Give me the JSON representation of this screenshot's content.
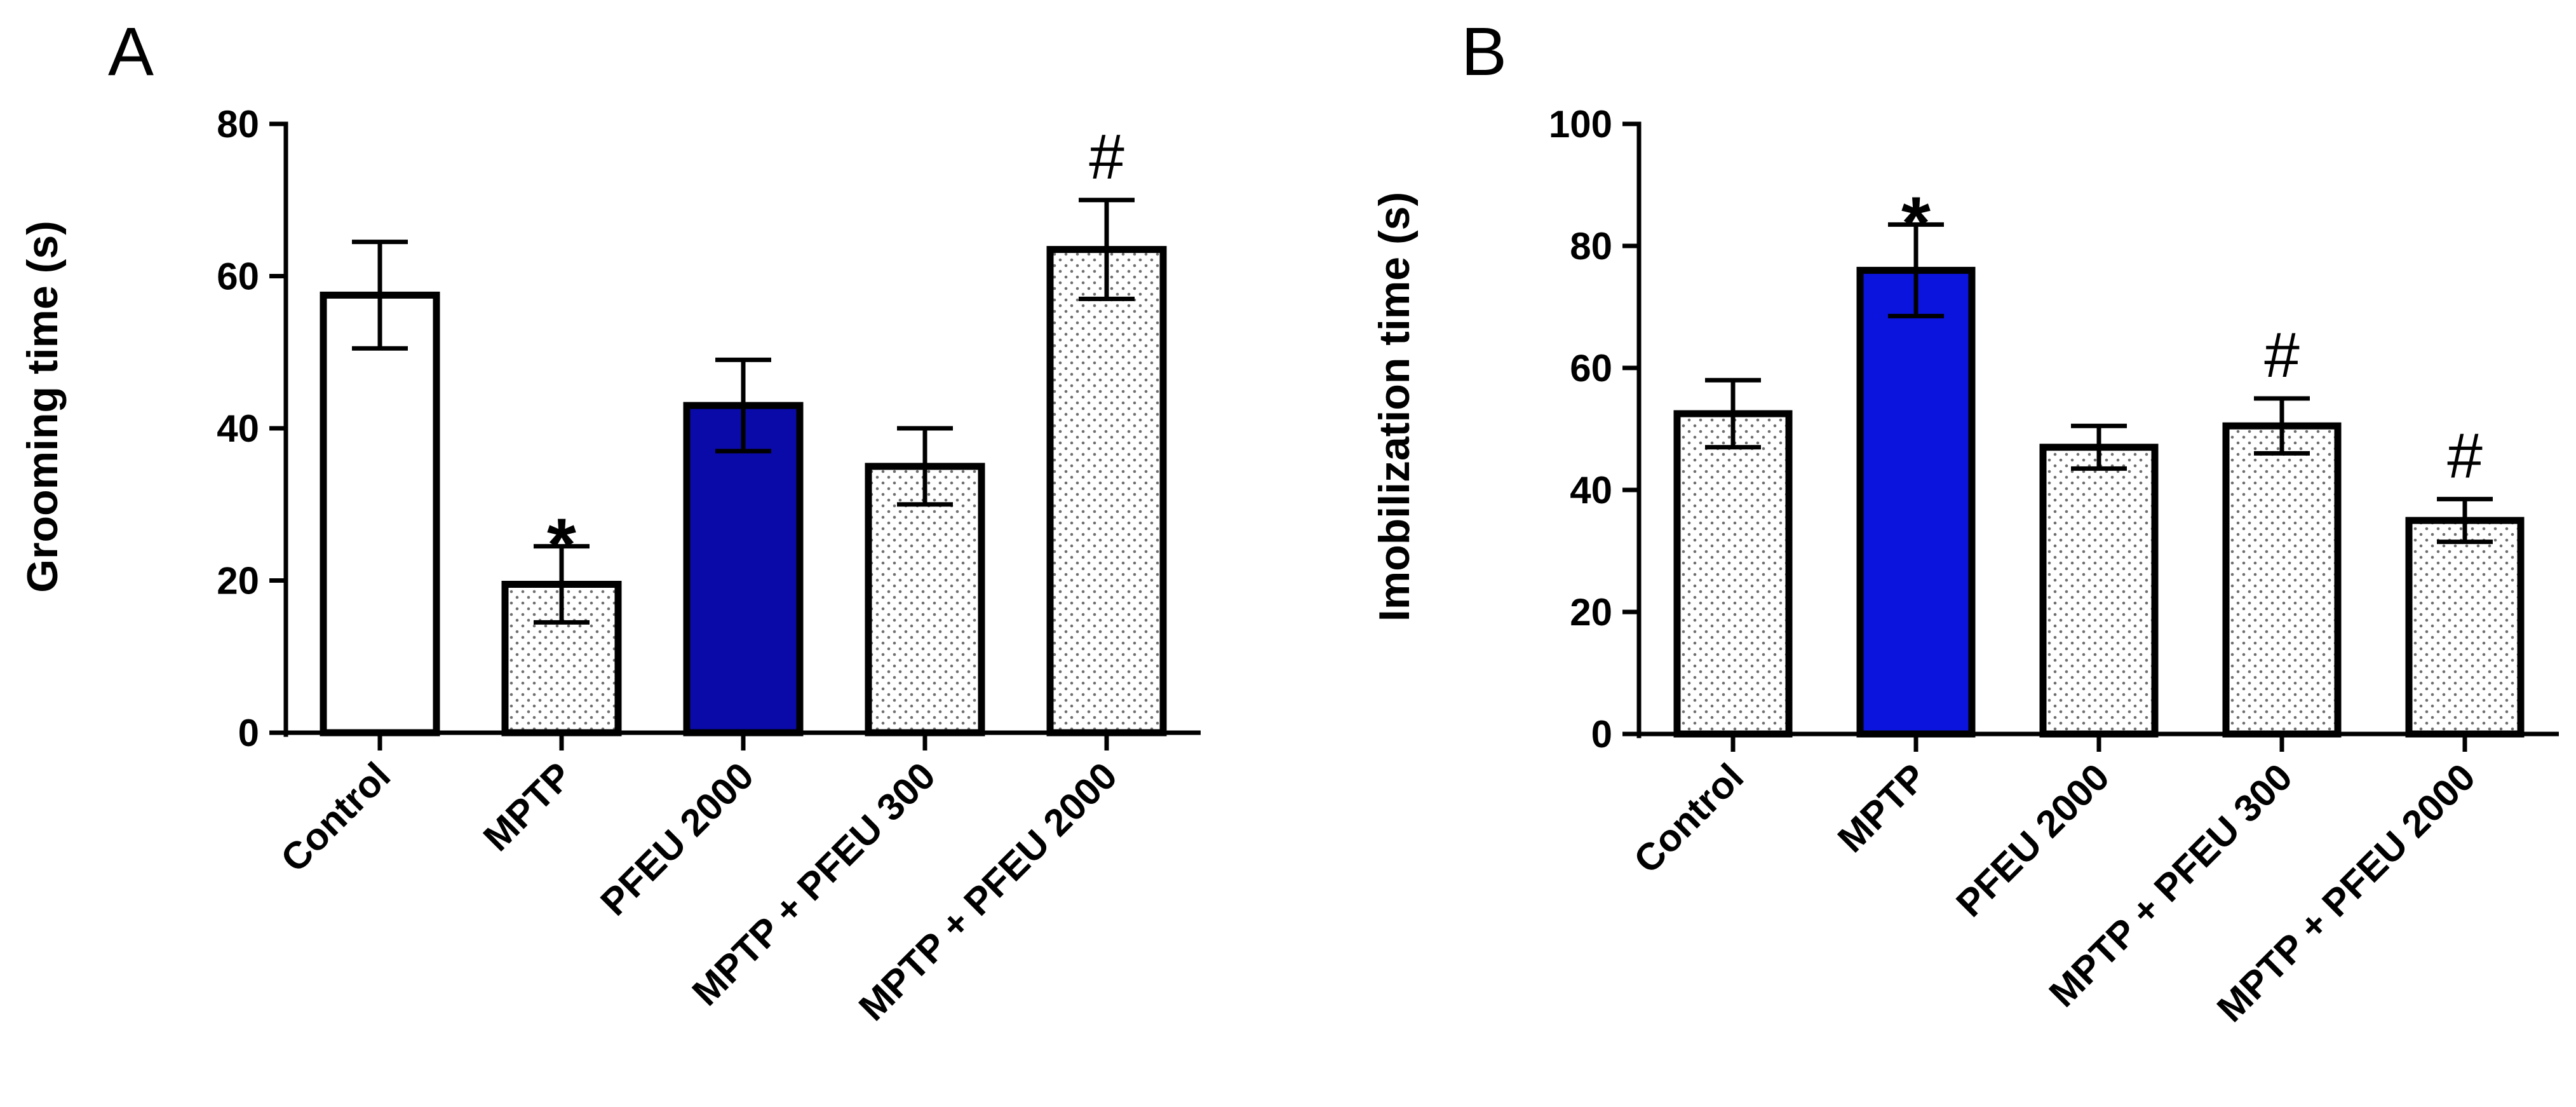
{
  "chart_data": [
    {
      "panel": "A",
      "type": "bar",
      "title": "",
      "xlabel": "",
      "ylabel": "Grooming time (s)",
      "ylim": [
        0,
        80
      ],
      "yticks": [
        0,
        20,
        40,
        60,
        80
      ],
      "grid": false,
      "legend": "none",
      "categories": [
        "Control",
        "MPTP",
        "PFEU 2000",
        "MPTP + PFEU 300",
        "MPTP + PFEU 2000"
      ],
      "values": [
        57.5,
        19.5,
        43,
        35,
        63.5
      ],
      "errors": [
        7,
        5,
        6,
        5,
        6.5
      ],
      "fills": [
        "white",
        "dots",
        "#0a0aa8",
        "dots",
        "dots"
      ],
      "annotations": [
        "",
        "*",
        "",
        "",
        "#"
      ]
    },
    {
      "panel": "B",
      "type": "bar",
      "title": "",
      "xlabel": "",
      "ylabel": "Imobilization time (s)",
      "ylim": [
        0,
        100
      ],
      "yticks": [
        0,
        20,
        40,
        60,
        80,
        100
      ],
      "grid": false,
      "legend": "none",
      "categories": [
        "Control",
        "MPTP",
        "PFEU 2000",
        "MPTP + PFEU 300",
        "MPTP + PFEU 2000"
      ],
      "values": [
        52.5,
        76,
        47,
        50.5,
        35
      ],
      "errors": [
        5.5,
        7.5,
        3.5,
        4.5,
        3.5
      ],
      "fills": [
        "dots",
        "#0a14dc",
        "dots",
        "dots",
        "dots"
      ],
      "annotations": [
        "",
        "*",
        "",
        "#",
        "#"
      ]
    }
  ]
}
